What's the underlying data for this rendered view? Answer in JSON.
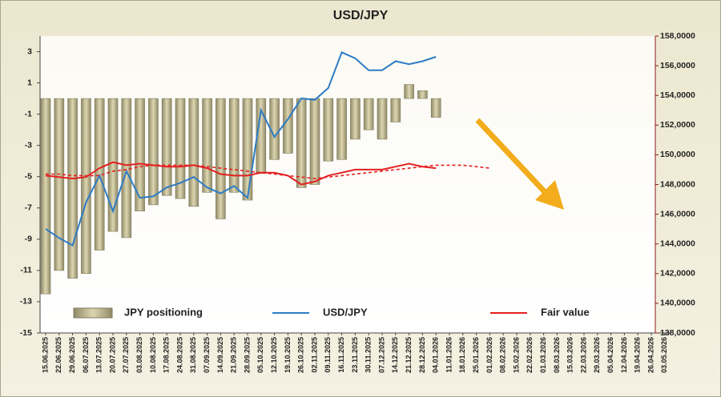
{
  "chart_data": {
    "type": "combo",
    "title": "USD/JPY",
    "categories": [
      "15.06.2025",
      "22.06.2025",
      "29.06.2025",
      "06.07.2025",
      "13.07.2025",
      "20.07.2025",
      "27.07.2025",
      "03.08.2025",
      "10.08.2025",
      "17.08.2025",
      "24.08.2025",
      "31.08.2025",
      "07.09.2025",
      "14.09.2025",
      "21.09.2025",
      "28.09.2025",
      "05.10.2025",
      "12.10.2025",
      "19.10.2025",
      "26.10.2025",
      "02.11.2025",
      "09.11.2025",
      "16.11.2025",
      "23.11.2025",
      "30.11.2025",
      "07.12.2025",
      "14.12.2025",
      "21.12.2025",
      "28.12.2025",
      "04.01.2026",
      "11.01.2026",
      "18.01.2026",
      "25.01.2026",
      "01.02.2026",
      "08.02.2026",
      "15.02.2026",
      "22.02.2026",
      "01.03.2026",
      "08.03.2026",
      "15.03.2026",
      "22.03.2026",
      "29.03.2026",
      "05.04.2026",
      "12.04.2026",
      "19.04.2026",
      "26.04.2026",
      "03.05.2026"
    ],
    "series": [
      {
        "name": "JPY positioning",
        "type": "bar",
        "color": "#c9c29b",
        "values": [
          -12.5,
          -11,
          -11.5,
          -11.2,
          -9.7,
          -8.5,
          -8.9,
          -7.2,
          -6.8,
          -6.2,
          -6.4,
          -6.9,
          -6,
          -7.7,
          -6,
          -6.5,
          -4.8,
          -3.9,
          -3.5,
          -5.7,
          -5.5,
          -4,
          -3.9,
          -2.6,
          -2,
          -2.6,
          -1.5,
          0.9,
          0.5,
          -1.2,
          null,
          null,
          null,
          null,
          null,
          null,
          null,
          null,
          null,
          null,
          null,
          null,
          null,
          null,
          null,
          null,
          null
        ]
      },
      {
        "name": "USD/JPY",
        "type": "line",
        "axis": "y2",
        "color": "#2e7cc4",
        "values": [
          145.0,
          144.4,
          143.9,
          146.8,
          148.6,
          146.2,
          148.9,
          147.1,
          147.2,
          147.8,
          148.1,
          148.5,
          147.8,
          147.4,
          147.9,
          147.1,
          153.0,
          151.2,
          152.4,
          153.8,
          153.7,
          154.5,
          156.9,
          156.5,
          155.7,
          155.7,
          156.3,
          156.1,
          156.3,
          156.6,
          null,
          null,
          null,
          null,
          null,
          null,
          null,
          null,
          null,
          null,
          null,
          null,
          null,
          null,
          null,
          null,
          null
        ]
      },
      {
        "name": "Fair value",
        "type": "line",
        "axis": "y2",
        "color": "#e52020",
        "values": [
          148.6,
          148.5,
          148.4,
          148.5,
          149.1,
          149.5,
          149.3,
          149.4,
          149.3,
          149.2,
          149.2,
          149.3,
          149.1,
          148.7,
          148.6,
          148.6,
          148.8,
          148.8,
          148.6,
          148.0,
          148.2,
          148.6,
          148.8,
          149.0,
          149.0,
          149.0,
          149.2,
          149.4,
          149.2,
          149.1,
          null,
          null,
          null,
          null,
          null,
          null,
          null,
          null,
          null,
          null,
          null,
          null,
          null,
          null,
          null,
          null,
          null
        ]
      },
      {
        "type": "line",
        "axis": "y2",
        "dashed": true,
        "color": "#e52020",
        "values": [
          148.7,
          148.7,
          148.6,
          148.6,
          148.6,
          148.9,
          149.0,
          149.2,
          149.3,
          149.3,
          149.3,
          149.3,
          149.2,
          149.1,
          149.0,
          148.9,
          148.8,
          148.7,
          148.6,
          148.5,
          148.4,
          148.5,
          148.6,
          148.7,
          148.8,
          148.9,
          149.0,
          149.1,
          149.2,
          149.3,
          149.3,
          149.3,
          149.2,
          149.1,
          null,
          null,
          null,
          null,
          null,
          null,
          null,
          null,
          null,
          null,
          null,
          null,
          null
        ]
      }
    ],
    "ylim": [
      -15,
      4
    ],
    "yticks": [
      -15,
      -13,
      -11,
      -9,
      -7,
      -5,
      -3,
      -1,
      1,
      3
    ],
    "y2lim": [
      138,
      158
    ],
    "y2ticks": [
      {
        "value": 138,
        "label": "138,0000"
      },
      {
        "value": 140,
        "label": "140,0000"
      },
      {
        "value": 142,
        "label": "142,0000"
      },
      {
        "value": 144,
        "label": "144,0000"
      },
      {
        "value": 146,
        "label": "146,0000"
      },
      {
        "value": 148,
        "label": "148,0000"
      },
      {
        "value": 150,
        "label": "150,0000"
      },
      {
        "value": 152,
        "label": "152,0000"
      },
      {
        "value": 154,
        "label": "154,0000"
      },
      {
        "value": 156,
        "label": "156,0000"
      },
      {
        "value": 158,
        "label": "158,0000"
      }
    ]
  }
}
